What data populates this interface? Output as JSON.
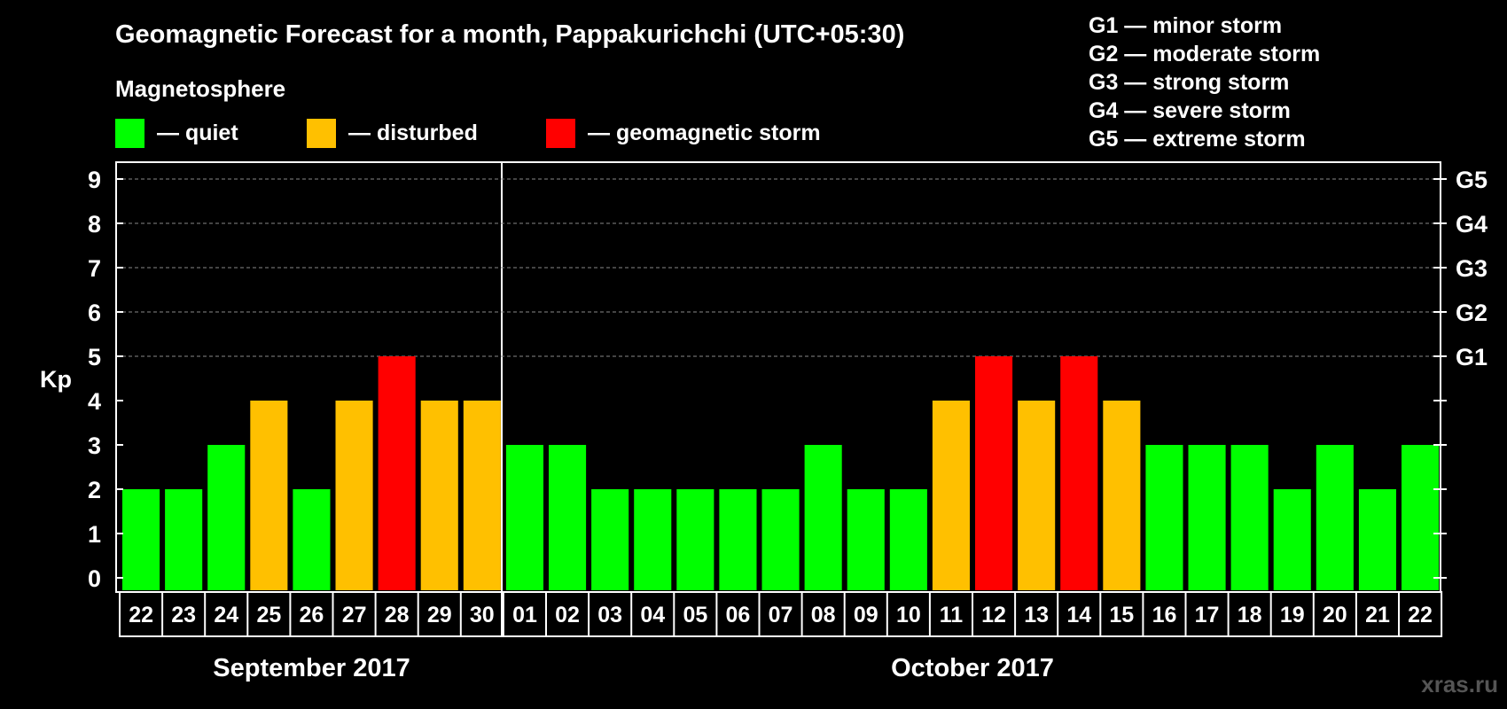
{
  "title": "Geomagnetic Forecast for a month, Pappakurichchi (UTC+05:30)",
  "legend": {
    "heading": "Magnetosphere",
    "items": [
      {
        "key": "quiet",
        "label": "— quiet",
        "color": "#00ff00"
      },
      {
        "key": "disturbed",
        "label": "— disturbed",
        "color": "#ffc000"
      },
      {
        "key": "storm",
        "label": "— geomagnetic storm",
        "color": "#ff0000"
      }
    ]
  },
  "storm_scale": [
    "G1 — minor storm",
    "G2 — moderate storm",
    "G3 — strong storm",
    "G4 — severe storm",
    "G5 — extreme storm"
  ],
  "watermark": "xras.ru",
  "chart_data": {
    "type": "bar",
    "ylabel": "Kp",
    "ylim": [
      0,
      9
    ],
    "yticks": [
      0,
      1,
      2,
      3,
      4,
      5,
      6,
      7,
      8,
      9
    ],
    "right_axis": [
      {
        "value": 5,
        "label": "G1"
      },
      {
        "value": 6,
        "label": "G2"
      },
      {
        "value": 7,
        "label": "G3"
      },
      {
        "value": 8,
        "label": "G4"
      },
      {
        "value": 9,
        "label": "G5"
      }
    ],
    "grid": "dashed horizontal at 5-9",
    "categories": [
      "22",
      "23",
      "24",
      "25",
      "26",
      "27",
      "28",
      "29",
      "30",
      "01",
      "02",
      "03",
      "04",
      "05",
      "06",
      "07",
      "08",
      "09",
      "10",
      "11",
      "12",
      "13",
      "14",
      "15",
      "16",
      "17",
      "18",
      "19",
      "20",
      "21",
      "22"
    ],
    "values": [
      2,
      2,
      3,
      4,
      2,
      4,
      5,
      4,
      4,
      3,
      3,
      2,
      2,
      2,
      2,
      2,
      3,
      2,
      2,
      4,
      5,
      4,
      5,
      4,
      3,
      3,
      3,
      2,
      3,
      2,
      3
    ],
    "months": [
      {
        "label": "September 2017",
        "start": 0,
        "count": 9
      },
      {
        "label": "October 2017",
        "start": 9,
        "count": 22
      }
    ]
  }
}
